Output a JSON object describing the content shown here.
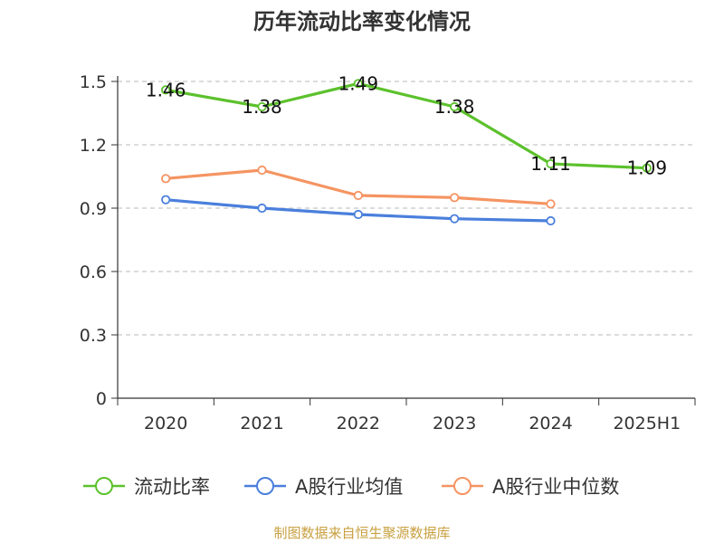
{
  "chart_data": {
    "type": "line",
    "title": "历年流动比率变化情况",
    "categories": [
      "2020",
      "2021",
      "2022",
      "2023",
      "2024",
      "2025H1"
    ],
    "ylim": [
      0,
      1.5
    ],
    "yticks": [
      "0",
      "0.3",
      "0.6",
      "0.9",
      "1.2",
      "1.5"
    ],
    "ytick_values": [
      0,
      0.3,
      0.6,
      0.9,
      1.2,
      1.5
    ],
    "grid": true,
    "legend_position": "bottom",
    "series": [
      {
        "name": "流动比率",
        "color": "#5cc12c",
        "values": [
          1.46,
          1.38,
          1.49,
          1.38,
          1.11,
          1.09
        ],
        "labels": [
          "1.46",
          "1.38",
          "1.49",
          "1.38",
          "1.11",
          "1.09"
        ],
        "show_labels": true
      },
      {
        "name": "A股行业均值",
        "color": "#4a7fdc",
        "values": [
          0.94,
          0.9,
          0.87,
          0.85,
          0.84,
          null
        ],
        "show_labels": false
      },
      {
        "name": "A股行业中位数",
        "color": "#f59462",
        "values": [
          1.04,
          1.08,
          0.96,
          0.95,
          0.92,
          null
        ],
        "show_labels": false
      }
    ],
    "source": "制图数据来自恒生聚源数据库"
  }
}
